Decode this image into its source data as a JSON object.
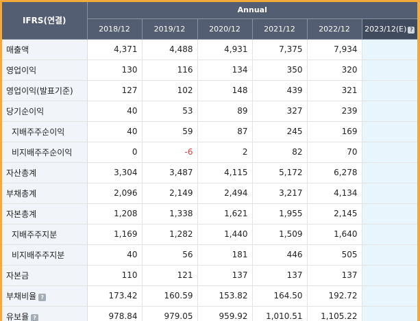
{
  "header": {
    "corner": "IFRS(연결)",
    "group": "Annual",
    "years": [
      "2018/12",
      "2019/12",
      "2020/12",
      "2021/12",
      "2022/12"
    ],
    "estimate": "2023/12(E)",
    "help_glyph": "?"
  },
  "rows": [
    {
      "label": "매출액",
      "v": [
        "4,371",
        "4,488",
        "4,931",
        "7,375",
        "7,934"
      ]
    },
    {
      "label": "영업이익",
      "v": [
        "130",
        "116",
        "134",
        "350",
        "320"
      ]
    },
    {
      "label": "영업이익(발표기준)",
      "v": [
        "127",
        "102",
        "148",
        "439",
        "321"
      ]
    },
    {
      "label": "당기순이익",
      "v": [
        "40",
        "53",
        "89",
        "327",
        "239"
      ]
    },
    {
      "label": "지배주주순이익",
      "v": [
        "40",
        "59",
        "87",
        "245",
        "169"
      ]
    },
    {
      "label": "비지배주주순이익",
      "v": [
        "0",
        "-6",
        "2",
        "82",
        "70"
      ]
    },
    {
      "label": "자산총계",
      "v": [
        "3,304",
        "3,487",
        "4,115",
        "5,172",
        "6,278"
      ]
    },
    {
      "label": "부채총계",
      "v": [
        "2,096",
        "2,149",
        "2,494",
        "3,217",
        "4,134"
      ]
    },
    {
      "label": "자본총계",
      "v": [
        "1,208",
        "1,338",
        "1,621",
        "1,955",
        "2,145"
      ]
    },
    {
      "label": "지배주주지분",
      "v": [
        "1,169",
        "1,282",
        "1,440",
        "1,509",
        "1,640"
      ]
    },
    {
      "label": "비지배주주지분",
      "v": [
        "40",
        "56",
        "181",
        "446",
        "505"
      ]
    },
    {
      "label": "자본금",
      "v": [
        "110",
        "121",
        "137",
        "137",
        "137"
      ]
    },
    {
      "label": "부채비율",
      "v": [
        "173.42",
        "160.59",
        "153.82",
        "164.50",
        "192.72"
      ]
    },
    {
      "label": "유보율",
      "v": [
        "978.84",
        "979.05",
        "959.92",
        "1,010.51",
        "1,105.22"
      ]
    }
  ],
  "colors": {
    "header_bg": "#535e72",
    "label_bg": "#f1f4f9",
    "estimate_bg": "#e9f5fc",
    "negative": "#e03a3a",
    "frame": "#f3a93c"
  }
}
